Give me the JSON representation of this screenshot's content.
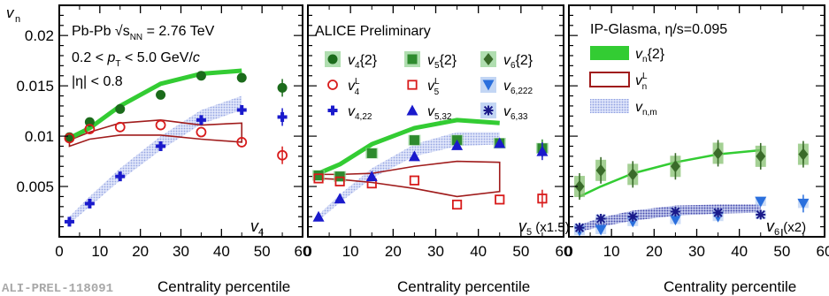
{
  "figure": {
    "y_axis_label": "v",
    "y_axis_label_sub": "n",
    "x_axis_label": "Centrality percentile",
    "watermark": "ALI-PREL-118091"
  },
  "chart_data": [
    {
      "type": "scatter",
      "panel": "left",
      "xlim": [
        0,
        60
      ],
      "ylim": [
        0,
        0.023
      ],
      "x_ticks": [
        "0",
        "10",
        "20",
        "30",
        "40",
        "50",
        "60"
      ],
      "y_ticks": [
        "0.005",
        "0.01",
        "0.015",
        "0.02"
      ],
      "y_tick_values": [
        0.005,
        0.01,
        0.015,
        0.02
      ],
      "x_tick_values": [
        0,
        10,
        20,
        30,
        40,
        50,
        60
      ],
      "annotations": [
        "Pb-Pb √s_NN = 2.76 TeV",
        "0.2 < p_T < 5.0 GeV/c",
        "|η| < 0.8"
      ],
      "corner_label": "v4",
      "series": [
        {
          "name": "v4{2}",
          "marker": "circle",
          "color": "#1b6b1b",
          "x": [
            2.5,
            7.5,
            15,
            25,
            35,
            45,
            55
          ],
          "y": [
            0.0099,
            0.0114,
            0.0127,
            0.0141,
            0.016,
            0.0158,
            0.0148
          ]
        },
        {
          "name": "v4L",
          "marker": "open-circle",
          "color": "#d81b1b",
          "x": [
            2.5,
            7.5,
            15,
            25,
            35,
            45,
            55
          ],
          "y": [
            0.0098,
            0.0107,
            0.0109,
            0.0111,
            0.0104,
            0.0094,
            0.0081
          ]
        },
        {
          "name": "v4,22",
          "marker": "cross",
          "color": "#1a1acc",
          "x": [
            2.5,
            7.5,
            15,
            25,
            35,
            45,
            55
          ],
          "y": [
            0.0015,
            0.0033,
            0.006,
            0.009,
            0.0116,
            0.0126,
            0.0119
          ]
        }
      ],
      "model_vn2": {
        "x": [
          2.5,
          7.5,
          15,
          25,
          35,
          45
        ],
        "y": [
          0.0098,
          0.0108,
          0.013,
          0.0152,
          0.0162,
          0.0165
        ]
      },
      "model_vnL_upper": {
        "x": [
          2.5,
          7.5,
          15,
          25,
          35,
          45
        ],
        "y": [
          0.0096,
          0.0104,
          0.0113,
          0.0116,
          0.0111,
          0.0113
        ]
      },
      "model_vnL_lower": {
        "x": [
          2.5,
          7.5,
          15,
          25,
          35,
          45
        ],
        "y": [
          0.009,
          0.0097,
          0.0101,
          0.0101,
          0.0097,
          0.0094
        ]
      },
      "model_vnm": {
        "x": [
          2.5,
          7.5,
          15,
          25,
          35,
          45
        ],
        "lo": [
          0.0013,
          0.003,
          0.0056,
          0.0086,
          0.0112,
          0.0126
        ],
        "hi": [
          0.002,
          0.004,
          0.0068,
          0.01,
          0.0126,
          0.014
        ]
      }
    },
    {
      "type": "scatter",
      "panel": "middle",
      "xlim": [
        0,
        60
      ],
      "ylim": [
        0,
        0.023
      ],
      "x_ticks": [
        "0",
        "10",
        "20",
        "30",
        "40",
        "50",
        "60"
      ],
      "x_tick_values": [
        0,
        10,
        20,
        30,
        40,
        50,
        60
      ],
      "annotations": [
        "ALICE Preliminary"
      ],
      "corner_label": "v5",
      "corner_label_suffix": "(x1.5)",
      "series": [
        {
          "name": "v5{2}",
          "marker": "square",
          "color": "#2e8b2e",
          "x": [
            2.5,
            7.5,
            15,
            25,
            35,
            45,
            55
          ],
          "y": [
            0.0061,
            0.006,
            0.0083,
            0.0096,
            0.0096,
            0.0093,
            0.0088
          ]
        },
        {
          "name": "v5L",
          "marker": "open-square",
          "color": "#d81b1b",
          "x": [
            2.5,
            7.5,
            15,
            25,
            35,
            45,
            55
          ],
          "y": [
            0.0058,
            0.0055,
            0.0053,
            0.0056,
            0.0032,
            0.0037,
            0.0038
          ]
        },
        {
          "name": "v5,32",
          "marker": "triangle",
          "color": "#1a1acc",
          "x": [
            2.5,
            7.5,
            15,
            25,
            35,
            45,
            55
          ],
          "y": [
            0.002,
            0.0038,
            0.006,
            0.008,
            0.0091,
            0.0093,
            0.0085
          ]
        }
      ],
      "model_vn2": {
        "x": [
          2.5,
          7.5,
          15,
          25,
          35,
          45
        ],
        "y": [
          0.0063,
          0.0072,
          0.0092,
          0.0108,
          0.0116,
          0.0113
        ]
      },
      "model_vnL_upper": {
        "x": [
          2.5,
          7.5,
          15,
          25,
          35,
          45
        ],
        "y": [
          0.0062,
          0.0062,
          0.0063,
          0.007,
          0.0075,
          0.0074
        ]
      },
      "model_vnL_lower": {
        "x": [
          2.5,
          7.5,
          15,
          25,
          35,
          45
        ],
        "y": [
          0.0058,
          0.0057,
          0.0054,
          0.0048,
          0.004,
          0.0045
        ]
      },
      "model_vnm": {
        "x": [
          2.5,
          7.5,
          15,
          25,
          35,
          45
        ],
        "lo": [
          0.0016,
          0.0034,
          0.0058,
          0.008,
          0.009,
          0.0092
        ],
        "hi": [
          0.0022,
          0.0042,
          0.0068,
          0.0092,
          0.0104,
          0.0104
        ]
      }
    },
    {
      "type": "scatter",
      "panel": "right",
      "xlim": [
        0,
        60
      ],
      "ylim": [
        0,
        0.023
      ],
      "x_ticks": [
        "0",
        "10",
        "20",
        "30",
        "40",
        "50",
        "60"
      ],
      "x_tick_values": [
        0,
        10,
        20,
        30,
        40,
        50,
        60
      ],
      "annotations": [
        "IP-Glasma, η/s=0.095"
      ],
      "corner_label": "v6",
      "corner_label_suffix": "(x2)",
      "series": [
        {
          "name": "v6{2}",
          "marker": "diamond",
          "color": "#3a6b2a",
          "x": [
            2.5,
            7.5,
            15,
            25,
            35,
            45,
            55
          ],
          "y": [
            0.005,
            0.0066,
            0.0062,
            0.007,
            0.0083,
            0.008,
            0.0082
          ]
        },
        {
          "name": "v6,222",
          "marker": "down-triangle",
          "color": "#2a6fdd",
          "x": [
            2.5,
            7.5,
            15,
            25,
            35,
            45,
            55
          ],
          "y": [
            0.0006,
            0.0007,
            0.0015,
            0.0017,
            0.002,
            0.0035,
            0.0033
          ]
        },
        {
          "name": "v6,33",
          "marker": "asterisk",
          "color": "#1a1a8a",
          "x": [
            2.5,
            7.5,
            15,
            25,
            35,
            45
          ],
          "y": [
            0.0009,
            0.0018,
            0.002,
            0.0025,
            0.0024,
            0.0022
          ]
        }
      ],
      "model_vn2": {
        "x": [
          2.5,
          7.5,
          15,
          25,
          35,
          45
        ],
        "y": [
          0.004,
          0.005,
          0.0063,
          0.0074,
          0.0082,
          0.0086
        ]
      },
      "model_vnm": {
        "x": [
          2.5,
          7.5,
          15,
          25,
          35,
          45
        ],
        "lo": [
          0.0005,
          0.001,
          0.0016,
          0.0021,
          0.0023,
          0.0024
        ],
        "hi": [
          0.0012,
          0.0019,
          0.0026,
          0.0031,
          0.0032,
          0.0032
        ]
      }
    }
  ],
  "legends": {
    "middle": [
      [
        "v4{2}",
        "v5{2}",
        "v6{2}"
      ],
      [
        "v4L",
        "v5L",
        "v6,222"
      ],
      [
        "v4,22",
        "v5,32",
        "v6,33"
      ]
    ],
    "right": [
      "vn{2}",
      "vnL",
      "vn,m"
    ]
  },
  "colors": {
    "frame": "#000000",
    "model_green": "#33cc33",
    "model_red": "#a01c1c",
    "model_band": "#b9c5ee"
  }
}
